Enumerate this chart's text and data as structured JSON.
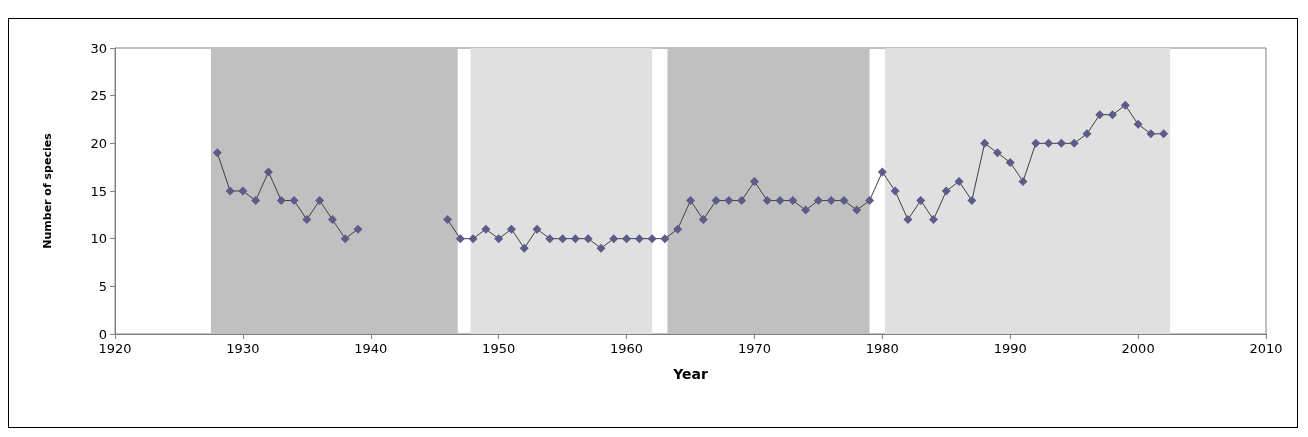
{
  "chart_data": {
    "type": "line",
    "xlabel": "Year",
    "ylabel": "Number of species",
    "xlim": [
      1920,
      2010
    ],
    "xticks": [
      1920,
      1930,
      1940,
      1950,
      1960,
      1970,
      1980,
      1990,
      2000,
      2010
    ],
    "ylim": [
      0,
      30
    ],
    "yticks": [
      0,
      5,
      10,
      15,
      20,
      25,
      30
    ],
    "grid": false,
    "marker": "diamond",
    "line_style": "solid",
    "series": [
      {
        "color": "#5c5c8a",
        "x": [
          1928,
          1929,
          1930,
          1931,
          1932,
          1933,
          1934,
          1935,
          1936,
          1937,
          1938,
          1939
        ],
        "values": [
          19,
          15,
          15,
          14,
          17,
          14,
          14,
          12,
          14,
          12,
          10,
          11
        ]
      },
      {
        "color": "#5c5c8a",
        "x": [
          1946,
          1947,
          1948,
          1949,
          1950,
          1951,
          1952,
          1953,
          1954,
          1955,
          1956,
          1957,
          1958,
          1959,
          1960,
          1961,
          1962,
          1963,
          1964,
          1965,
          1966,
          1967,
          1968,
          1969,
          1970,
          1971,
          1972,
          1973,
          1974,
          1975,
          1976,
          1977,
          1978,
          1979,
          1980,
          1981,
          1982,
          1983,
          1984,
          1985,
          1986,
          1987,
          1988,
          1989,
          1990,
          1991,
          1992,
          1993,
          1994,
          1995,
          1996,
          1997,
          1998,
          1999,
          2000,
          2001,
          2002
        ],
        "values": [
          12,
          10,
          10,
          11,
          10,
          11,
          9,
          11,
          10,
          10,
          10,
          10,
          9,
          10,
          10,
          10,
          10,
          10,
          11,
          14,
          12,
          14,
          14,
          14,
          16,
          14,
          14,
          14,
          13,
          14,
          14,
          14,
          13,
          14,
          17,
          15,
          12,
          14,
          12,
          15,
          16,
          14,
          20,
          19,
          18,
          16,
          20,
          20,
          20,
          20,
          21,
          23,
          23,
          24,
          22,
          21,
          21
        ]
      }
    ],
    "bands": [
      {
        "axis": "x",
        "from": 1927.5,
        "to": 1946.8,
        "color": "#c0c0c0"
      },
      {
        "axis": "x",
        "from": 1947.8,
        "to": 1962.0,
        "color": "#e0e0e0"
      },
      {
        "axis": "x",
        "from": 1963.2,
        "to": 1979.0,
        "color": "#c0c0c0"
      },
      {
        "axis": "x",
        "from": 1980.2,
        "to": 2002.5,
        "color": "#e0e0e0"
      }
    ]
  }
}
